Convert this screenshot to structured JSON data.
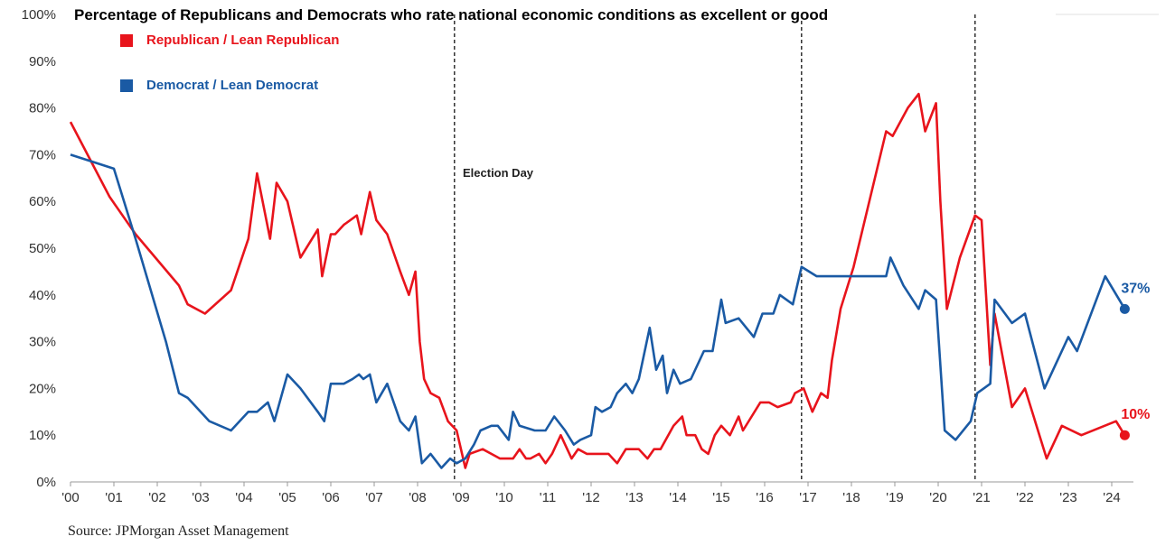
{
  "chart_data": {
    "type": "line",
    "title": "Percentage of Republicans and Democrats who rate national economic conditions as excellent or good",
    "xlabel": "",
    "ylabel": "",
    "ylim": [
      0,
      100
    ],
    "xlim": [
      2000,
      2024.5
    ],
    "yticks": [
      "0%",
      "10%",
      "20%",
      "30%",
      "40%",
      "50%",
      "60%",
      "70%",
      "80%",
      "90%",
      "100%"
    ],
    "xticks": [
      {
        "value": 2000,
        "label": "'00"
      },
      {
        "value": 2001,
        "label": "'01"
      },
      {
        "value": 2002,
        "label": "'02"
      },
      {
        "value": 2003,
        "label": "'03"
      },
      {
        "value": 2004,
        "label": "'04"
      },
      {
        "value": 2005,
        "label": "'05"
      },
      {
        "value": 2006,
        "label": "'06"
      },
      {
        "value": 2007,
        "label": "'07"
      },
      {
        "value": 2008,
        "label": "'08"
      },
      {
        "value": 2009,
        "label": "'09"
      },
      {
        "value": 2010,
        "label": "'10"
      },
      {
        "value": 2011,
        "label": "'11"
      },
      {
        "value": 2012,
        "label": "'12"
      },
      {
        "value": 2013,
        "label": "'13"
      },
      {
        "value": 2014,
        "label": "'14"
      },
      {
        "value": 2015,
        "label": "'15"
      },
      {
        "value": 2016,
        "label": "'16"
      },
      {
        "value": 2017,
        "label": "'17"
      },
      {
        "value": 2018,
        "label": "'18"
      },
      {
        "value": 2019,
        "label": "'19"
      },
      {
        "value": 2020,
        "label": "'20"
      },
      {
        "value": 2021,
        "label": "'21"
      },
      {
        "value": 2022,
        "label": "'22"
      },
      {
        "value": 2023,
        "label": "'23"
      },
      {
        "value": 2024,
        "label": "'24"
      }
    ],
    "grid": false,
    "legend_position": "top-left",
    "election_lines": [
      2008.85,
      2016.85,
      2020.85
    ],
    "annotation": {
      "text": "Election Day",
      "x": 2009.0,
      "y": 66
    },
    "series": [
      {
        "name": "Republican / Lean Republican",
        "color": "#e8141c",
        "end_label": "10%",
        "end_marker": true,
        "points": [
          [
            2000.0,
            77
          ],
          [
            2000.9,
            61
          ],
          [
            2001.5,
            53
          ],
          [
            2002.5,
            42
          ],
          [
            2002.7,
            38
          ],
          [
            2003.1,
            36
          ],
          [
            2003.7,
            41
          ],
          [
            2004.1,
            52
          ],
          [
            2004.3,
            66
          ],
          [
            2004.6,
            52
          ],
          [
            2004.75,
            64
          ],
          [
            2005.0,
            60
          ],
          [
            2005.3,
            48
          ],
          [
            2005.7,
            54
          ],
          [
            2005.8,
            44
          ],
          [
            2006.0,
            53
          ],
          [
            2006.1,
            53
          ],
          [
            2006.3,
            55
          ],
          [
            2006.6,
            57
          ],
          [
            2006.7,
            53
          ],
          [
            2006.9,
            62
          ],
          [
            2007.05,
            56
          ],
          [
            2007.3,
            53
          ],
          [
            2007.6,
            45
          ],
          [
            2007.8,
            40
          ],
          [
            2007.95,
            45
          ],
          [
            2008.05,
            30
          ],
          [
            2008.15,
            22
          ],
          [
            2008.3,
            19
          ],
          [
            2008.5,
            18
          ],
          [
            2008.7,
            13
          ],
          [
            2008.9,
            11
          ],
          [
            2009.0,
            7
          ],
          [
            2009.1,
            3
          ],
          [
            2009.2,
            6
          ],
          [
            2009.5,
            7
          ],
          [
            2009.7,
            6
          ],
          [
            2009.9,
            5
          ],
          [
            2010.2,
            5
          ],
          [
            2010.35,
            7
          ],
          [
            2010.5,
            5
          ],
          [
            2010.6,
            5
          ],
          [
            2010.8,
            6
          ],
          [
            2010.95,
            4
          ],
          [
            2011.1,
            6
          ],
          [
            2011.3,
            10
          ],
          [
            2011.55,
            5
          ],
          [
            2011.7,
            7
          ],
          [
            2011.9,
            6
          ],
          [
            2012.2,
            6
          ],
          [
            2012.4,
            6
          ],
          [
            2012.6,
            4
          ],
          [
            2012.8,
            7
          ],
          [
            2013.1,
            7
          ],
          [
            2013.3,
            5
          ],
          [
            2013.45,
            7
          ],
          [
            2013.6,
            7
          ],
          [
            2013.9,
            12
          ],
          [
            2014.1,
            14
          ],
          [
            2014.2,
            10
          ],
          [
            2014.4,
            10
          ],
          [
            2014.55,
            7
          ],
          [
            2014.7,
            6
          ],
          [
            2014.85,
            10
          ],
          [
            2015.0,
            12
          ],
          [
            2015.2,
            10
          ],
          [
            2015.4,
            14
          ],
          [
            2015.5,
            11
          ],
          [
            2015.7,
            14
          ],
          [
            2015.9,
            17
          ],
          [
            2016.1,
            17
          ],
          [
            2016.3,
            16
          ],
          [
            2016.6,
            17
          ],
          [
            2016.7,
            19
          ],
          [
            2016.9,
            20
          ],
          [
            2017.1,
            15
          ],
          [
            2017.3,
            19
          ],
          [
            2017.45,
            18
          ],
          [
            2017.55,
            26
          ],
          [
            2017.75,
            37
          ],
          [
            2018.05,
            46
          ],
          [
            2018.8,
            75
          ],
          [
            2018.95,
            74
          ],
          [
            2019.3,
            80
          ],
          [
            2019.55,
            83
          ],
          [
            2019.7,
            75
          ],
          [
            2019.95,
            81
          ],
          [
            2020.05,
            60
          ],
          [
            2020.2,
            37
          ],
          [
            2020.5,
            48
          ],
          [
            2020.85,
            57
          ],
          [
            2021.0,
            56
          ],
          [
            2021.2,
            25
          ],
          [
            2021.3,
            36
          ],
          [
            2021.7,
            16
          ],
          [
            2022.0,
            20
          ],
          [
            2022.5,
            5
          ],
          [
            2022.85,
            12
          ],
          [
            2023.3,
            10
          ],
          [
            2024.1,
            13
          ],
          [
            2024.3,
            10
          ]
        ]
      },
      {
        "name": "Democrat / Lean Democrat",
        "color": "#1a5aa4",
        "end_label": "37%",
        "end_marker": true,
        "points": [
          [
            2000.0,
            70
          ],
          [
            2001.0,
            67
          ],
          [
            2001.5,
            52
          ],
          [
            2002.2,
            30
          ],
          [
            2002.5,
            19
          ],
          [
            2002.7,
            18
          ],
          [
            2003.2,
            13
          ],
          [
            2003.7,
            11
          ],
          [
            2004.1,
            15
          ],
          [
            2004.3,
            15
          ],
          [
            2004.55,
            17
          ],
          [
            2004.7,
            13
          ],
          [
            2005.0,
            23
          ],
          [
            2005.3,
            20
          ],
          [
            2005.7,
            15
          ],
          [
            2005.85,
            13
          ],
          [
            2006.0,
            21
          ],
          [
            2006.3,
            21
          ],
          [
            2006.5,
            22
          ],
          [
            2006.65,
            23
          ],
          [
            2006.75,
            22
          ],
          [
            2006.9,
            23
          ],
          [
            2007.05,
            17
          ],
          [
            2007.3,
            21
          ],
          [
            2007.6,
            13
          ],
          [
            2007.8,
            11
          ],
          [
            2007.95,
            14
          ],
          [
            2008.1,
            4
          ],
          [
            2008.3,
            6
          ],
          [
            2008.55,
            3
          ],
          [
            2008.75,
            5
          ],
          [
            2008.9,
            4
          ],
          [
            2009.1,
            5
          ],
          [
            2009.3,
            8
          ],
          [
            2009.45,
            11
          ],
          [
            2009.7,
            12
          ],
          [
            2009.85,
            12
          ],
          [
            2010.1,
            9
          ],
          [
            2010.2,
            15
          ],
          [
            2010.35,
            12
          ],
          [
            2010.7,
            11
          ],
          [
            2010.95,
            11
          ],
          [
            2011.15,
            14
          ],
          [
            2011.4,
            11
          ],
          [
            2011.6,
            8
          ],
          [
            2011.75,
            9
          ],
          [
            2012.0,
            10
          ],
          [
            2012.1,
            16
          ],
          [
            2012.25,
            15
          ],
          [
            2012.45,
            16
          ],
          [
            2012.6,
            19
          ],
          [
            2012.8,
            21
          ],
          [
            2012.95,
            19
          ],
          [
            2013.1,
            22
          ],
          [
            2013.35,
            33
          ],
          [
            2013.5,
            24
          ],
          [
            2013.65,
            27
          ],
          [
            2013.75,
            19
          ],
          [
            2013.9,
            24
          ],
          [
            2014.05,
            21
          ],
          [
            2014.3,
            22
          ],
          [
            2014.6,
            28
          ],
          [
            2014.8,
            28
          ],
          [
            2015.0,
            39
          ],
          [
            2015.1,
            34
          ],
          [
            2015.4,
            35
          ],
          [
            2015.75,
            31
          ],
          [
            2015.95,
            36
          ],
          [
            2016.2,
            36
          ],
          [
            2016.35,
            40
          ],
          [
            2016.65,
            38
          ],
          [
            2016.85,
            46
          ],
          [
            2017.2,
            44
          ],
          [
            2018.8,
            44
          ],
          [
            2018.9,
            48
          ],
          [
            2019.2,
            42
          ],
          [
            2019.55,
            37
          ],
          [
            2019.7,
            41
          ],
          [
            2019.95,
            39
          ],
          [
            2020.15,
            11
          ],
          [
            2020.4,
            9
          ],
          [
            2020.75,
            13
          ],
          [
            2020.9,
            19
          ],
          [
            2021.05,
            20
          ],
          [
            2021.2,
            21
          ],
          [
            2021.3,
            39
          ],
          [
            2021.7,
            34
          ],
          [
            2022.0,
            36
          ],
          [
            2022.45,
            20
          ],
          [
            2023.0,
            31
          ],
          [
            2023.2,
            28
          ],
          [
            2023.85,
            44
          ],
          [
            2024.3,
            37
          ]
        ]
      }
    ]
  },
  "source": "Source: JPMorgan Asset Management"
}
